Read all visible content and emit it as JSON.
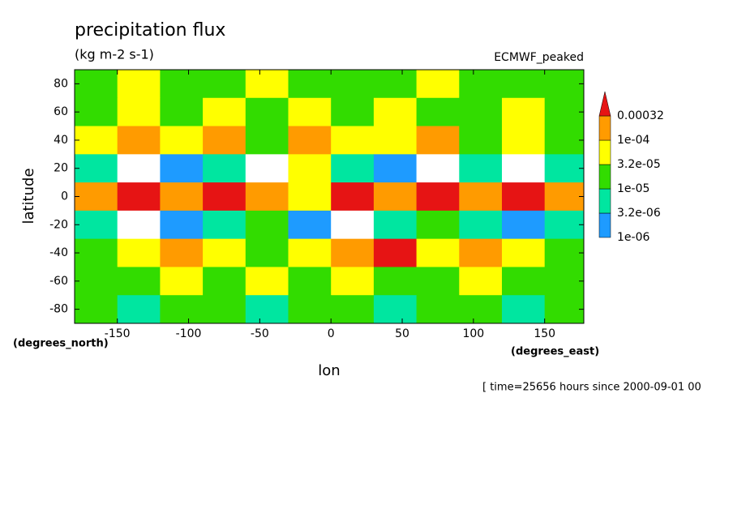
{
  "chart_data": {
    "type": "contour",
    "title": "precipitation flux",
    "subtitle": "(kg m-2 s-1)",
    "dataset": "ECMWF_peaked",
    "x_label": "lon",
    "y_label": "latitude",
    "x_units": "(degrees_east)",
    "y_units": "(degrees_north)",
    "annotation": "[ time=25656 hours since 2000-09-01 00",
    "xlim": [
      -180,
      177.5
    ],
    "ylim": [
      -90,
      90
    ],
    "xticks": [
      -150,
      -100,
      -50,
      0,
      50,
      100,
      150
    ],
    "yticks": [
      80,
      60,
      40,
      20,
      0,
      -20,
      -40,
      -60,
      -80
    ],
    "x": [
      -165,
      -135,
      -105,
      -75,
      -45,
      -15,
      15,
      45,
      75,
      105,
      135,
      165
    ],
    "y": [
      80,
      60,
      40,
      20,
      0,
      -20,
      -40,
      -60,
      -80
    ],
    "z": [
      [
        2e-05,
        5e-05,
        2e-05,
        2e-05,
        5e-05,
        2e-05,
        2e-05,
        2e-05,
        5e-05,
        2e-05,
        2e-05,
        2e-05
      ],
      [
        2e-05,
        5e-05,
        2e-05,
        5e-05,
        2e-05,
        5e-05,
        2e-05,
        5e-05,
        2e-05,
        2e-05,
        5e-05,
        2e-05
      ],
      [
        5e-05,
        0.00015,
        5e-05,
        0.00015,
        2e-05,
        0.00015,
        5e-05,
        5e-05,
        0.00015,
        2e-05,
        5e-05,
        2e-05
      ],
      [
        5e-06,
        5e-07,
        2e-06,
        5e-06,
        5e-07,
        5e-05,
        5e-06,
        2e-06,
        5e-07,
        5e-06,
        5e-07,
        5e-06
      ],
      [
        0.00015,
        0.0004,
        0.00015,
        0.0004,
        0.00015,
        5e-05,
        0.0004,
        0.00015,
        0.0004,
        0.00015,
        0.0004,
        0.00015
      ],
      [
        5e-06,
        5e-07,
        2e-06,
        5e-06,
        2e-05,
        2e-06,
        5e-07,
        5e-06,
        2e-05,
        5e-06,
        2e-06,
        5e-06
      ],
      [
        2e-05,
        5e-05,
        0.00015,
        5e-05,
        2e-05,
        5e-05,
        0.00015,
        0.0004,
        5e-05,
        0.00015,
        5e-05,
        2e-05
      ],
      [
        2e-05,
        2e-05,
        5e-05,
        2e-05,
        5e-05,
        2e-05,
        5e-05,
        2e-05,
        2e-05,
        5e-05,
        2e-05,
        2e-05
      ],
      [
        2e-05,
        5e-06,
        2e-05,
        2e-05,
        5e-06,
        2e-05,
        2e-05,
        5e-06,
        2e-05,
        2e-05,
        5e-06,
        2e-05
      ]
    ],
    "levels": [
      {
        "value": 1e-06,
        "label": "1e-06"
      },
      {
        "value": 3.2e-06,
        "label": "3.2e-06"
      },
      {
        "value": 1e-05,
        "label": "1e-05"
      },
      {
        "value": 3.2e-05,
        "label": "3.2e-05"
      },
      {
        "value": 0.0001,
        "label": "1e-04"
      },
      0.00032
    ],
    "under_color": "#ffffff",
    "colors": [
      "#1e9bff",
      "#00e6a0",
      "#32dc00",
      "#ffff00",
      "#ff9b00",
      "#e61414"
    ]
  }
}
